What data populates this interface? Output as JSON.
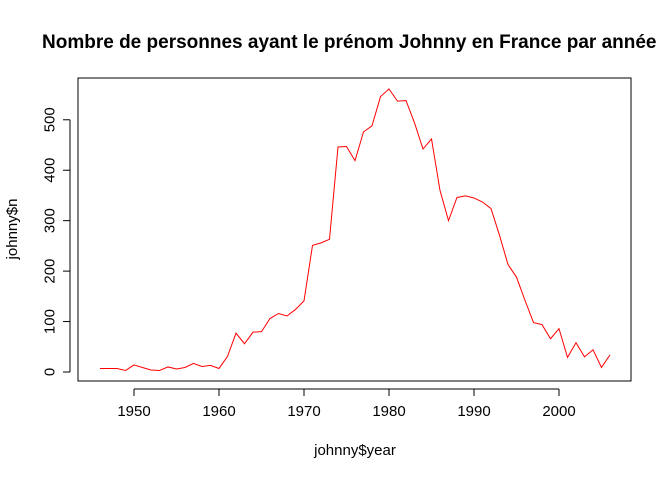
{
  "chart_data": {
    "type": "line",
    "title": "Nombre de personnes ayant le prénom Johnny en France par année",
    "xlabel": "johnny$year",
    "ylabel": "johnny$n",
    "xlim": [
      1946,
      2006
    ],
    "ylim": [
      0,
      561
    ],
    "x_ticks": [
      1950,
      1960,
      1970,
      1980,
      1990,
      2000
    ],
    "y_ticks": [
      0,
      100,
      200,
      300,
      400,
      500
    ],
    "grid": false,
    "legend": "none",
    "series": [
      {
        "color": "#ff0000",
        "x": [
          1946,
          1947,
          1948,
          1949,
          1950,
          1951,
          1952,
          1953,
          1954,
          1955,
          1956,
          1957,
          1958,
          1959,
          1960,
          1961,
          1962,
          1963,
          1964,
          1965,
          1966,
          1967,
          1968,
          1969,
          1970,
          1971,
          1972,
          1973,
          1974,
          1975,
          1976,
          1977,
          1978,
          1979,
          1980,
          1981,
          1982,
          1983,
          1984,
          1985,
          1986,
          1987,
          1988,
          1989,
          1990,
          1991,
          1992,
          1993,
          1994,
          1995,
          1996,
          1997,
          1998,
          1999,
          2000,
          2001,
          2002,
          2003,
          2004,
          2005,
          2006
        ],
        "y": [
          7,
          7,
          7,
          3,
          14,
          9,
          4,
          3,
          10,
          6,
          9,
          17,
          11,
          13,
          7,
          31,
          77,
          56,
          79,
          80,
          106,
          116,
          111,
          124,
          141,
          251,
          256,
          263,
          446,
          447,
          419,
          476,
          488,
          546,
          561,
          537,
          538,
          494,
          442,
          462,
          360,
          300,
          346,
          349,
          345,
          337,
          324,
          271,
          213,
          188,
          142,
          98,
          94,
          66,
          86,
          29,
          58,
          30,
          44,
          9,
          34
        ]
      }
    ]
  }
}
